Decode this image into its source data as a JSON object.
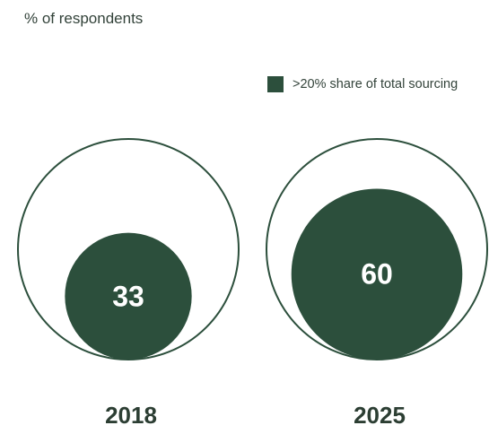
{
  "chart_data": {
    "type": "nested-circle",
    "ylabel": "% of respondents",
    "categories": [
      "2018",
      "2025"
    ],
    "series": [
      {
        "name": ">20% share of total sourcing",
        "values": [
          33,
          60
        ]
      }
    ],
    "colors": {
      "fill": "#2c4f3c",
      "outline": "#2c4f3c",
      "text": "#2c3e33"
    },
    "legend_position": "top-right"
  }
}
